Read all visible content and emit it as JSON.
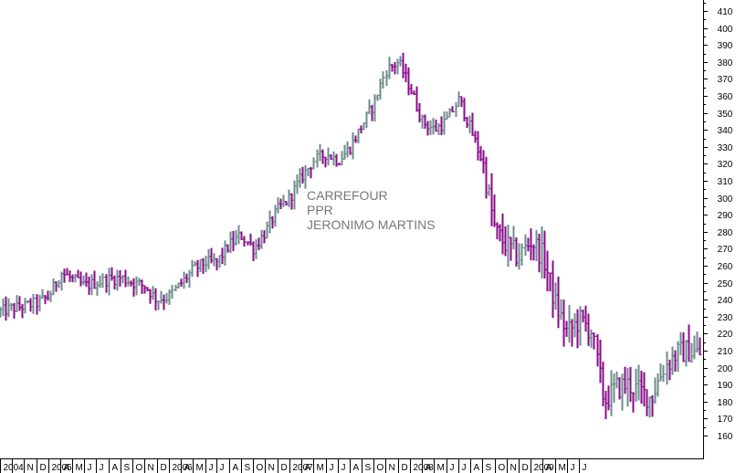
{
  "chart_data": {
    "type": "ohlc",
    "title_lines": [
      "CARREFOUR",
      "PPR",
      "JERONIMO MARTINS"
    ],
    "ylim": [
      150,
      415
    ],
    "y_ticks": [
      160,
      170,
      180,
      190,
      200,
      210,
      220,
      230,
      240,
      250,
      260,
      270,
      280,
      290,
      300,
      310,
      320,
      330,
      340,
      350,
      360,
      370,
      380,
      390,
      400,
      410
    ],
    "x_tick_labels": [
      "2004",
      "N",
      "D",
      "2005",
      "A",
      "M",
      "J",
      "J",
      "A",
      "S",
      "O",
      "N",
      "D",
      "2006",
      "A",
      "M",
      "J",
      "J",
      "A",
      "S",
      "O",
      "N",
      "D",
      "2007",
      "A",
      "M",
      "J",
      "J",
      "A",
      "S",
      "O",
      "N",
      "D",
      "2008",
      "A",
      "M",
      "J",
      "J",
      "A",
      "S",
      "O",
      "N",
      "D",
      "2009",
      "A",
      "M",
      "J",
      "J"
    ],
    "x_range": [
      "2004-09-01",
      "2009-07-01"
    ],
    "bar_colors": {
      "up": "#6e8c8c",
      "down": "#8a0a8a"
    },
    "axis_color": "#000000",
    "grid": false,
    "series": [
      {
        "name": "CARREFOUR",
        "trend": [
          [
            "2004-09-01",
            233
          ],
          [
            "2004-10-01",
            235
          ],
          [
            "2004-11-01",
            236
          ],
          [
            "2004-12-01",
            238
          ],
          [
            "2005-01-01",
            242
          ],
          [
            "2005-02-01",
            256
          ],
          [
            "2005-03-01",
            252
          ],
          [
            "2005-04-01",
            248
          ],
          [
            "2005-05-01",
            250
          ],
          [
            "2005-06-01",
            252
          ],
          [
            "2005-07-01",
            253
          ],
          [
            "2005-08-01",
            250
          ],
          [
            "2005-09-01",
            248
          ],
          [
            "2005-10-01",
            240
          ],
          [
            "2005-11-01",
            242
          ],
          [
            "2005-12-01",
            250
          ],
          [
            "2006-01-01",
            258
          ],
          [
            "2006-02-01",
            262
          ],
          [
            "2006-03-01",
            262
          ],
          [
            "2006-04-01",
            272
          ],
          [
            "2006-05-01",
            278
          ],
          [
            "2006-06-01",
            270
          ],
          [
            "2006-07-01",
            280
          ],
          [
            "2006-08-01",
            293
          ],
          [
            "2006-09-01",
            300
          ],
          [
            "2006-10-01",
            312
          ],
          [
            "2006-11-01",
            322
          ],
          [
            "2006-12-01",
            326
          ],
          [
            "2007-01-01",
            322
          ],
          [
            "2007-02-01",
            330
          ],
          [
            "2007-03-01",
            342
          ],
          [
            "2007-04-01",
            355
          ],
          [
            "2007-05-01",
            375
          ],
          [
            "2007-06-01",
            380
          ],
          [
            "2007-07-01",
            365
          ],
          [
            "2007-08-01",
            345
          ],
          [
            "2007-09-01",
            340
          ],
          [
            "2007-10-01",
            345
          ],
          [
            "2007-11-01",
            358
          ],
          [
            "2007-12-01",
            340
          ],
          [
            "2008-01-01",
            320
          ],
          [
            "2008-02-01",
            280
          ],
          [
            "2008-03-01",
            272
          ],
          [
            "2008-04-01",
            265
          ],
          [
            "2008-05-01",
            275
          ],
          [
            "2008-06-01",
            265
          ],
          [
            "2008-07-01",
            238
          ],
          [
            "2008-08-01",
            220
          ],
          [
            "2008-09-01",
            228
          ],
          [
            "2008-10-01",
            222
          ],
          [
            "2008-11-01",
            180
          ],
          [
            "2008-12-01",
            188
          ],
          [
            "2009-01-01",
            190
          ],
          [
            "2009-02-01",
            186
          ],
          [
            "2009-03-01",
            182
          ],
          [
            "2009-04-01",
            200
          ],
          [
            "2009-05-01",
            208
          ],
          [
            "2009-06-01",
            210
          ],
          [
            "2009-07-01",
            208
          ]
        ]
      }
    ]
  }
}
